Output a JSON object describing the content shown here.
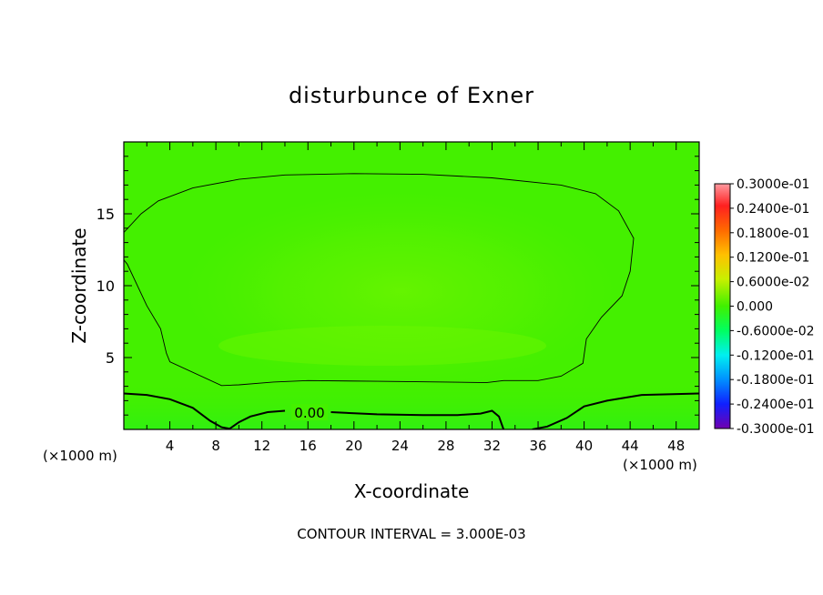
{
  "chart_data": {
    "type": "heatmap",
    "title": "disturbunce of Exner",
    "xlabel": "X-coordinate",
    "ylabel": "Z-coordinate",
    "x_unit_left": "(×1000 m)",
    "x_unit_right": "(×1000 m)",
    "xlim": [
      0,
      50
    ],
    "ylim": [
      0,
      20
    ],
    "x_ticks": [
      4,
      8,
      12,
      16,
      20,
      24,
      28,
      32,
      36,
      40,
      44,
      48
    ],
    "x_tick_labels": [
      "4",
      "8",
      "12",
      "16",
      "20",
      "24",
      "28",
      "32",
      "36",
      "40",
      "44",
      "48"
    ],
    "y_ticks": [
      5,
      10,
      15
    ],
    "y_tick_labels": [
      "5",
      "10",
      "15"
    ],
    "contour_label": "0.00",
    "footer": "CONTOUR INTERVAL = 3.000E-03",
    "colorbar": {
      "range": [
        -0.03,
        0.03
      ],
      "labels": [
        "0.3000e-01",
        "0.2400e-01",
        "0.1800e-01",
        "0.1200e-01",
        "0.6000e-02",
        "0.000",
        "-0.6000e-02",
        "-0.1200e-01",
        "-0.1800e-01",
        "-0.2400e-01",
        "-0.3000e-01"
      ],
      "colors": [
        "#ff9aa0",
        "#ff2020",
        "#ff6a00",
        "#ffc000",
        "#c8f000",
        "#40f000",
        "#00ff60",
        "#00f0f0",
        "#0090ff",
        "#1020ff",
        "#3000c0",
        "#7000b0"
      ]
    },
    "contours": [
      {
        "level": "0.003",
        "points": [
          [
            0,
            13.7
          ],
          [
            1.5,
            15.0
          ],
          [
            3,
            15.9
          ],
          [
            6,
            16.8
          ],
          [
            10,
            17.4
          ],
          [
            14,
            17.7
          ],
          [
            20,
            17.8
          ],
          [
            26,
            17.75
          ],
          [
            32,
            17.5
          ],
          [
            38,
            17.0
          ],
          [
            41,
            16.4
          ],
          [
            43,
            15.2
          ],
          [
            44.3,
            13.3
          ],
          [
            44,
            11.0
          ],
          [
            43.3,
            9.3
          ],
          [
            41.5,
            7.8
          ],
          [
            40.2,
            6.3
          ],
          [
            39.9,
            4.6
          ],
          [
            38,
            3.7
          ],
          [
            36,
            3.4
          ],
          [
            33,
            3.4
          ],
          [
            31.5,
            3.25
          ],
          [
            28,
            3.3
          ],
          [
            22,
            3.35
          ],
          [
            16,
            3.4
          ],
          [
            13,
            3.3
          ],
          [
            10,
            3.1
          ],
          [
            8.5,
            3.05
          ],
          [
            4,
            4.7
          ],
          [
            3.7,
            5.3
          ],
          [
            3.2,
            7.0
          ],
          [
            2.0,
            8.6
          ],
          [
            0.3,
            11.5
          ],
          [
            0,
            11.8
          ]
        ]
      },
      {
        "level": "0.00",
        "segments": [
          [
            [
              0,
              2.5
            ],
            [
              2,
              2.4
            ],
            [
              4,
              2.1
            ],
            [
              6,
              1.5
            ],
            [
              7.5,
              0.6
            ],
            [
              8.5,
              0.15
            ],
            [
              9.2,
              0.05
            ],
            [
              10,
              0.5
            ],
            [
              11,
              0.9
            ],
            [
              12.5,
              1.2
            ],
            [
              14,
              1.3
            ]
          ],
          [
            [
              18,
              1.2
            ],
            [
              22,
              1.05
            ],
            [
              26,
              1.0
            ],
            [
              29,
              1.0
            ],
            [
              31,
              1.1
            ],
            [
              32,
              1.3
            ],
            [
              32.6,
              0.9
            ],
            [
              33,
              0
            ]
          ],
          [
            [
              35.5,
              0
            ],
            [
              36.8,
              0.2
            ],
            [
              38.5,
              0.8
            ],
            [
              40,
              1.6
            ],
            [
              42,
              2.0
            ],
            [
              45,
              2.4
            ],
            [
              50,
              2.5
            ]
          ]
        ]
      }
    ]
  }
}
